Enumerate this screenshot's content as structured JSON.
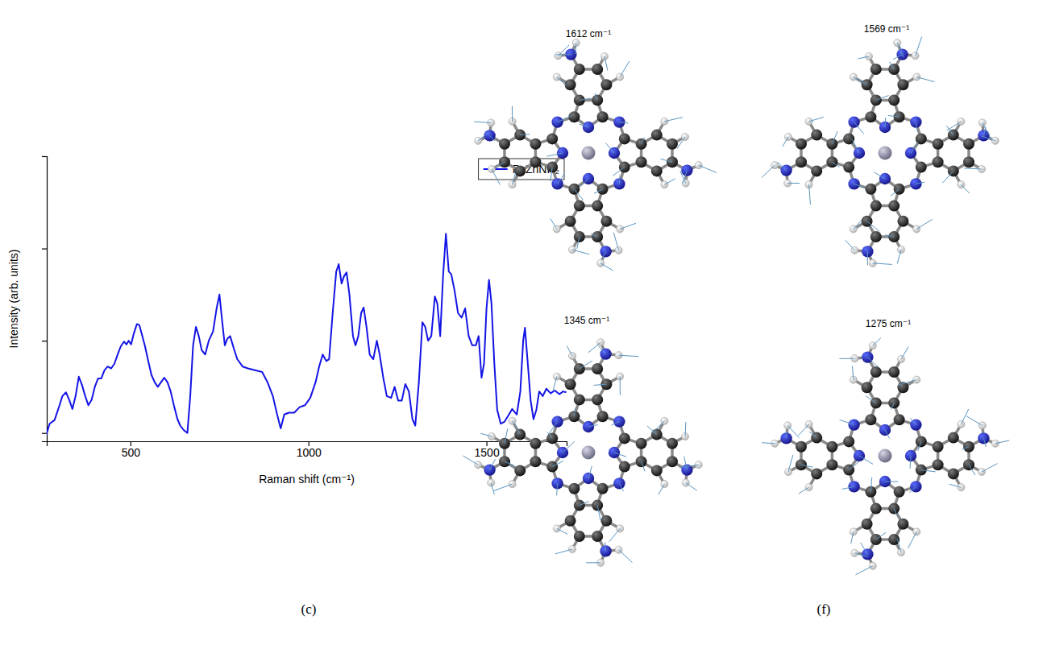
{
  "chart_data": {
    "type": "line",
    "x_label": "Raman shift (cm⁻¹)",
    "y_label": "Intensity (arb. units)",
    "xlim": [
      265,
      1725
    ],
    "xticks": [
      500,
      1000,
      1500
    ],
    "ylim": [
      -0.09,
      3
    ],
    "yticks": [
      0,
      1,
      2,
      3
    ],
    "tick_labels": "x",
    "legend": "upper right",
    "x": [
      264,
      273,
      287,
      300,
      309,
      319,
      328,
      337,
      346,
      355,
      364,
      373,
      382,
      391,
      400,
      409,
      418,
      427,
      436,
      446,
      455,
      464,
      473,
      482,
      489,
      495,
      502,
      509,
      518,
      525,
      532,
      541,
      550,
      559,
      568,
      577,
      586,
      595,
      604,
      613,
      622,
      632,
      640,
      650,
      660,
      668,
      676,
      684,
      692,
      700,
      710,
      720,
      732,
      742,
      750,
      758,
      765,
      772,
      780,
      790,
      800,
      815,
      830,
      850,
      870,
      885,
      900,
      912,
      922,
      932,
      945,
      960,
      975,
      990,
      1005,
      1020,
      1030,
      1040,
      1050,
      1058,
      1068,
      1078,
      1085,
      1093,
      1100,
      1107,
      1115,
      1125,
      1132,
      1140,
      1148,
      1155,
      1163,
      1172,
      1182,
      1192,
      1200,
      1210,
      1220,
      1232,
      1242,
      1252,
      1262,
      1272,
      1282,
      1292,
      1300,
      1310,
      1320,
      1328,
      1336,
      1345,
      1355,
      1362,
      1370,
      1378,
      1386,
      1394,
      1401,
      1410,
      1420,
      1430,
      1440,
      1450,
      1460,
      1470,
      1478,
      1486,
      1493,
      1500,
      1507,
      1514,
      1522,
      1530,
      1540,
      1550,
      1560,
      1572,
      1585,
      1595,
      1603,
      1608,
      1616,
      1624,
      1632,
      1640,
      1648,
      1658,
      1668,
      1680,
      1692,
      1705,
      1715,
      1724
    ],
    "series": [
      {
        "name": "PcZnNH₂",
        "color": "#1414e6",
        "values": [
          -0.02,
          0.1,
          0.14,
          0.29,
          0.4,
          0.44,
          0.36,
          0.26,
          0.4,
          0.61,
          0.52,
          0.4,
          0.3,
          0.36,
          0.5,
          0.59,
          0.59,
          0.68,
          0.72,
          0.7,
          0.75,
          0.85,
          0.94,
          0.99,
          0.96,
          1.0,
          0.96,
          1.07,
          1.18,
          1.17,
          1.07,
          0.94,
          0.78,
          0.63,
          0.55,
          0.5,
          0.55,
          0.6,
          0.55,
          0.45,
          0.3,
          0.15,
          0.08,
          0.03,
          0.0,
          0.4,
          0.95,
          1.15,
          1.05,
          0.9,
          0.85,
          1.0,
          1.1,
          1.35,
          1.5,
          1.2,
          0.95,
          1.02,
          1.05,
          0.92,
          0.8,
          0.72,
          0.7,
          0.68,
          0.66,
          0.55,
          0.4,
          0.2,
          0.05,
          0.2,
          0.22,
          0.22,
          0.28,
          0.3,
          0.38,
          0.55,
          0.72,
          0.85,
          0.78,
          0.8,
          1.3,
          1.75,
          1.83,
          1.62,
          1.7,
          1.74,
          1.5,
          1.05,
          0.95,
          1.05,
          1.3,
          1.36,
          1.15,
          0.85,
          0.8,
          1.0,
          0.85,
          0.6,
          0.4,
          0.38,
          0.5,
          0.35,
          0.35,
          0.53,
          0.45,
          0.15,
          0.08,
          0.55,
          1.2,
          1.15,
          1.0,
          1.05,
          1.48,
          1.4,
          1.05,
          1.7,
          2.16,
          1.75,
          1.72,
          1.55,
          1.3,
          1.25,
          1.35,
          1.05,
          0.95,
          0.95,
          1.05,
          0.6,
          0.75,
          1.35,
          1.66,
          1.4,
          0.75,
          0.25,
          0.1,
          0.12,
          0.18,
          0.26,
          0.2,
          0.45,
          1.0,
          1.14,
          0.75,
          0.35,
          0.15,
          0.25,
          0.45,
          0.4,
          0.48,
          0.43,
          0.46,
          0.42,
          0.45,
          0.44
        ]
      }
    ]
  },
  "panel_labels": [
    "(c)",
    "(f)"
  ],
  "diagram": {
    "modes": [
      {
        "label": "1612 cm⁻¹"
      },
      {
        "label": "1569 cm⁻¹"
      },
      {
        "label": "1345 cm⁻¹"
      },
      {
        "label": "1275 cm⁻¹"
      }
    ]
  }
}
